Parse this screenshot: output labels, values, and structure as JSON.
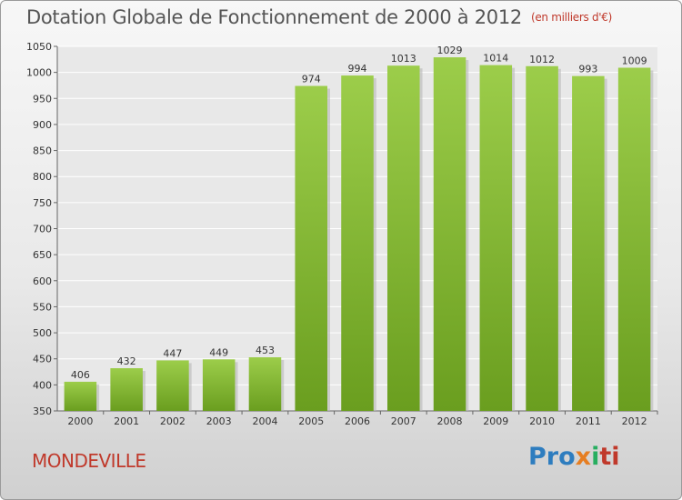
{
  "title": "Dotation Globale de Fonctionnement de 2000 à 2012",
  "subtitle": "(en milliers d'€)",
  "commune": "MONDEVILLE",
  "logo": {
    "p": "Pro",
    "x": "x",
    "i": "i",
    "ti": "ti"
  },
  "colors": {
    "bar_top": "#9ccd4a",
    "bar_bottom": "#6a9e1f",
    "grid": "#ffffff"
  },
  "chart_data": {
    "type": "bar",
    "categories": [
      "2000",
      "2001",
      "2002",
      "2003",
      "2004",
      "2005",
      "2006",
      "2007",
      "2008",
      "2009",
      "2010",
      "2011",
      "2012"
    ],
    "values": [
      406,
      432,
      447,
      449,
      453,
      974,
      994,
      1013,
      1029,
      1014,
      1012,
      993,
      1009
    ],
    "ylim": [
      350,
      1050
    ],
    "yticks": [
      350,
      400,
      450,
      500,
      550,
      600,
      650,
      700,
      750,
      800,
      850,
      900,
      950,
      1000,
      1050
    ],
    "grid": true
  }
}
